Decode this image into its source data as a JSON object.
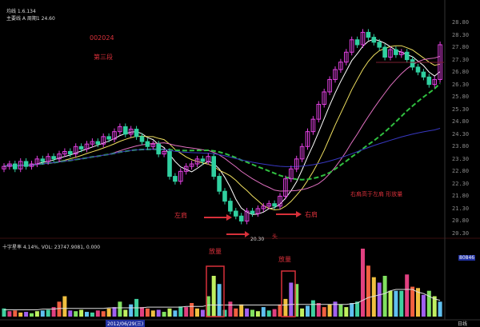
{
  "header": {
    "line1": "均线 1.6.134",
    "line2": "主要线 A 周期1 24.60"
  },
  "annotations": {
    "code": "002024",
    "stage": "第三段",
    "left_shoulder": "左肩",
    "head": "头",
    "right_shoulder": "右肩",
    "note": "右肩高于左肩 形放量",
    "low_price": "20.30",
    "volume_box1": "放量",
    "volume_box2": "放量"
  },
  "indicator": {
    "text": "十字星率 4.14%, VOL: 23747.9081, 0.000",
    "right_value": "80846"
  },
  "footer": {
    "date": "2012/06/29(三)",
    "period": "日线"
  },
  "colors": {
    "up": "#e040e0",
    "down": "#30d0a0",
    "annotation": "#d8303a",
    "ma": [
      "#ffffff",
      "#f0e060",
      "#e070c0",
      "#30c040",
      "#3838c0"
    ]
  },
  "chart_data": [
    {
      "type": "candlestick",
      "y_axis_ticks": [
        "28.80",
        "28.30",
        "27.80",
        "27.30",
        "26.80",
        "26.30",
        "25.80",
        "25.30",
        "24.80",
        "24.30",
        "23.80",
        "23.30",
        "22.80",
        "22.30",
        "21.80",
        "21.30",
        "20.80",
        "20.30"
      ],
      "ylim": [
        20.3,
        28.8
      ],
      "open": [
        22.9,
        23.0,
        23.1,
        22.9,
        23.2,
        23.0,
        23.1,
        23.3,
        23.2,
        23.4,
        23.3,
        23.5,
        23.6,
        23.5,
        23.8,
        23.7,
        23.9,
        24.0,
        23.9,
        24.2,
        24.1,
        24.4,
        24.6,
        24.3,
        24.5,
        24.2,
        24.0,
        23.8,
        23.9,
        23.5,
        23.6,
        22.6,
        22.4,
        22.8,
        23.0,
        23.1,
        23.3,
        23.2,
        23.4,
        22.6,
        22.0,
        21.6,
        21.2,
        21.0,
        20.8,
        21.2,
        21.1,
        21.3,
        21.4,
        21.5,
        21.4,
        21.8,
        22.5,
        22.9,
        23.3,
        23.8,
        24.4,
        24.9,
        25.5,
        26.0,
        26.5,
        26.9,
        27.2,
        27.6,
        28.1,
        27.9,
        28.4,
        28.2,
        28.0,
        27.8,
        27.4,
        27.7,
        27.5,
        27.6,
        27.3,
        27.0,
        26.8,
        26.6,
        26.3,
        26.5
      ],
      "close": [
        23.0,
        23.1,
        22.9,
        23.2,
        23.0,
        23.1,
        23.3,
        23.2,
        23.4,
        23.3,
        23.5,
        23.6,
        23.5,
        23.8,
        23.7,
        23.9,
        24.0,
        23.9,
        24.2,
        24.1,
        24.4,
        24.6,
        24.3,
        24.5,
        24.2,
        24.0,
        23.8,
        23.9,
        23.5,
        23.6,
        22.6,
        22.4,
        22.8,
        23.0,
        23.1,
        23.3,
        23.2,
        23.4,
        22.6,
        22.0,
        21.6,
        21.2,
        21.0,
        20.8,
        21.2,
        21.1,
        21.3,
        21.4,
        21.5,
        21.4,
        21.8,
        22.5,
        22.9,
        23.3,
        23.8,
        24.4,
        24.9,
        25.5,
        26.0,
        26.5,
        26.9,
        27.2,
        27.6,
        28.1,
        27.9,
        28.4,
        28.2,
        28.0,
        27.8,
        27.4,
        27.7,
        27.5,
        27.6,
        27.3,
        27.0,
        26.8,
        26.6,
        26.3,
        26.5,
        27.9
      ]
    },
    {
      "type": "bar",
      "title": "VOL",
      "values": [
        12,
        8,
        9,
        6,
        7,
        5,
        8,
        9,
        10,
        14,
        22,
        30,
        9,
        8,
        10,
        7,
        6,
        9,
        8,
        12,
        14,
        22,
        10,
        18,
        26,
        14,
        12,
        9,
        10,
        7,
        12,
        9,
        15,
        14,
        20,
        12,
        10,
        30,
        60,
        48,
        10,
        22,
        12,
        18,
        12,
        10,
        8,
        14,
        9,
        11,
        18,
        26,
        50,
        48,
        12,
        16,
        24,
        20,
        14,
        18,
        22,
        18,
        14,
        20,
        22,
        100,
        75,
        58,
        50,
        60,
        38,
        38,
        38,
        62,
        44,
        42,
        32,
        38,
        30,
        22
      ],
      "moving_average": [
        10,
        10,
        10,
        10,
        10,
        10,
        10,
        11,
        11,
        11,
        12,
        12,
        12,
        12,
        12,
        12,
        12,
        12,
        12,
        13,
        13,
        13,
        13,
        13,
        13,
        13,
        14,
        14,
        14,
        14,
        14,
        14,
        14,
        15,
        15,
        15,
        15,
        17,
        17,
        17,
        17,
        17,
        17,
        17,
        17,
        17,
        17,
        17,
        17,
        17,
        17,
        17,
        18,
        18,
        18,
        18,
        18,
        18,
        18,
        18,
        18,
        18,
        18,
        19,
        20,
        24,
        28,
        30,
        32,
        34,
        38,
        40,
        40,
        40,
        40,
        36,
        34,
        30,
        26,
        24
      ]
    }
  ]
}
